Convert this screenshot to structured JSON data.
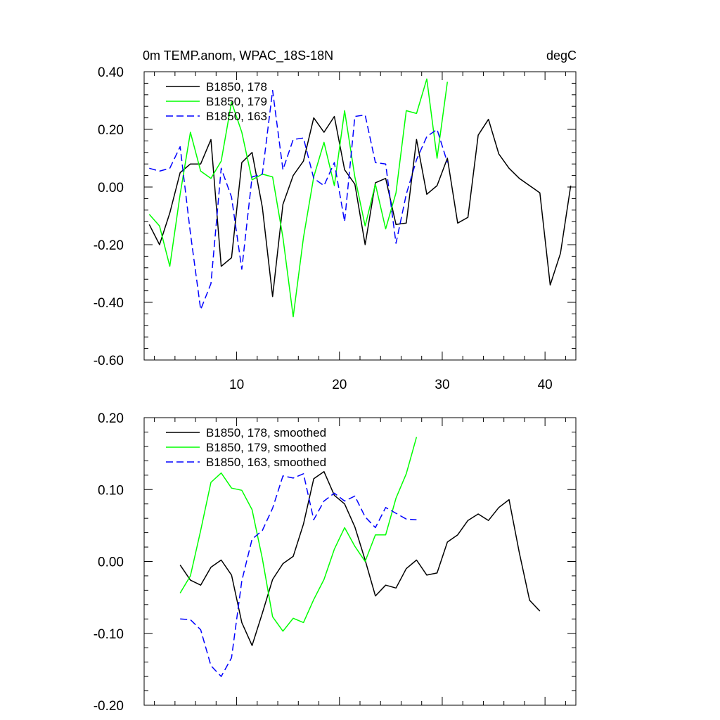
{
  "chart_data": [
    {
      "type": "line",
      "title": "0m TEMP.anom, WPAC_18S-18N",
      "subtitle_right": "degC",
      "xlabel": "",
      "ylabel": "",
      "xlim": [
        1,
        43
      ],
      "ylim": [
        -0.6,
        0.4
      ],
      "yticks": [
        -0.6,
        -0.4,
        -0.2,
        0.0,
        0.2,
        0.4
      ],
      "ytick_labels": [
        "-0.60",
        "-0.40",
        "-0.20",
        "0.00",
        "0.20",
        "0.40"
      ],
      "xticks": [
        10,
        20,
        30,
        40
      ],
      "xtick_labels": [
        "10",
        "20",
        "30",
        "40"
      ],
      "legend_position": "top-left",
      "series": [
        {
          "name": "B1850, 178",
          "color": "#000000",
          "dash": "solid",
          "x": [
            1.5,
            2.5,
            3.5,
            4.5,
            5.5,
            6.5,
            7.5,
            8.5,
            9.5,
            10.5,
            11.5,
            12.5,
            13.5,
            14.5,
            15.5,
            16.5,
            17.5,
            18.5,
            19.5,
            20.5,
            21.5,
            22.5,
            23.5,
            24.5,
            25.5,
            26.5,
            27.5,
            28.5,
            29.5,
            30.5,
            31.5,
            32.5,
            33.5,
            34.5,
            35.5,
            36.5,
            37.5,
            38.5,
            39.5,
            40.5,
            41.5,
            42.5
          ],
          "y": [
            -0.13,
            -0.2,
            -0.09,
            0.05,
            0.08,
            0.08,
            0.165,
            -0.275,
            -0.245,
            0.085,
            0.12,
            -0.07,
            -0.38,
            -0.06,
            0.04,
            0.09,
            0.24,
            0.19,
            0.245,
            0.06,
            0.01,
            -0.2,
            0.015,
            0.03,
            -0.13,
            -0.125,
            0.165,
            -0.025,
            0.005,
            0.1,
            -0.125,
            -0.105,
            0.18,
            0.235,
            0.115,
            0.065,
            0.03,
            0.005,
            -0.02,
            -0.34,
            -0.23,
            0.005
          ]
        },
        {
          "name": "B1850, 179",
          "color": "#00ff00",
          "dash": "solid",
          "x": [
            1.5,
            2.5,
            3.5,
            4.5,
            5.5,
            6.5,
            7.5,
            8.5,
            9.5,
            10.5,
            11.5,
            12.5,
            13.5,
            14.5,
            15.5,
            16.5,
            17.5,
            18.5,
            19.5,
            20.5,
            21.5,
            22.5,
            23.5,
            24.5,
            25.5,
            26.5,
            27.5,
            28.5,
            29.5,
            30.5
          ],
          "y": [
            -0.095,
            -0.135,
            -0.275,
            -0.025,
            0.19,
            0.055,
            0.03,
            0.09,
            0.295,
            0.19,
            0.025,
            0.045,
            0.035,
            -0.175,
            -0.45,
            -0.175,
            0.035,
            0.155,
            0.005,
            0.265,
            0.035,
            -0.135,
            0.01,
            -0.145,
            -0.02,
            0.265,
            0.255,
            0.375,
            0.1,
            0.365
          ]
        },
        {
          "name": "B1850, 163",
          "color": "#0000ff",
          "dash": "dashed",
          "x": [
            1.5,
            2.5,
            3.5,
            4.5,
            5.5,
            6.5,
            7.5,
            8.5,
            9.5,
            10.5,
            11.5,
            12.5,
            13.5,
            14.5,
            15.5,
            16.5,
            17.5,
            18.5,
            19.5,
            20.5,
            21.5,
            22.5,
            23.5,
            24.5,
            25.5,
            26.5,
            27.5,
            28.5,
            29.5,
            30.5
          ],
          "y": [
            0.065,
            0.055,
            0.065,
            0.14,
            -0.16,
            -0.425,
            -0.335,
            0.065,
            -0.035,
            -0.285,
            0.035,
            0.045,
            0.335,
            0.06,
            0.165,
            0.17,
            0.03,
            0.005,
            0.085,
            -0.12,
            0.245,
            0.25,
            0.085,
            0.08,
            -0.195,
            -0.025,
            0.095,
            0.175,
            0.2,
            0.085
          ]
        }
      ]
    },
    {
      "type": "line",
      "title": "",
      "xlabel": "",
      "ylabel": "",
      "xlim": [
        1,
        43
      ],
      "ylim": [
        -0.2,
        0.2
      ],
      "yticks": [
        -0.2,
        -0.1,
        0.0,
        0.1,
        0.2
      ],
      "ytick_labels": [
        "-0.20",
        "-0.10",
        "0.00",
        "0.10",
        "0.20"
      ],
      "xticks": [
        10,
        20,
        30,
        40
      ],
      "xtick_labels": [
        "",
        "",
        "",
        ""
      ],
      "legend_position": "top-left",
      "series": [
        {
          "name": "B1850, 178, smoothed",
          "color": "#000000",
          "dash": "solid",
          "x": [
            4.5,
            5.5,
            6.5,
            7.5,
            8.5,
            9.5,
            10.5,
            11.5,
            12.5,
            13.5,
            14.5,
            15.5,
            16.5,
            17.5,
            18.5,
            19.5,
            20.5,
            21.5,
            22.5,
            23.5,
            24.5,
            25.5,
            26.5,
            27.5,
            28.5,
            29.5,
            30.5,
            31.5,
            32.5,
            33.5,
            34.5,
            35.5,
            36.5,
            37.5,
            38.5,
            39.5
          ],
          "y": [
            -0.005,
            -0.026,
            -0.033,
            -0.008,
            0.002,
            -0.019,
            -0.085,
            -0.117,
            -0.072,
            -0.025,
            -0.003,
            0.007,
            0.052,
            0.115,
            0.125,
            0.092,
            0.08,
            0.048,
            0.002,
            -0.048,
            -0.033,
            -0.037,
            -0.01,
            0.002,
            -0.019,
            -0.016,
            0.027,
            0.037,
            0.057,
            0.066,
            0.057,
            0.075,
            0.086,
            0.012,
            -0.054,
            -0.069
          ]
        },
        {
          "name": "B1850, 179, smoothed",
          "color": "#00ff00",
          "dash": "solid",
          "x": [
            4.5,
            5.5,
            6.5,
            7.5,
            8.5,
            9.5,
            10.5,
            11.5,
            12.5,
            13.5,
            14.5,
            15.5,
            16.5,
            17.5,
            18.5,
            19.5,
            20.5,
            21.5,
            22.5,
            23.5,
            24.5,
            25.5,
            26.5,
            27.5
          ],
          "y": [
            -0.044,
            -0.02,
            0.043,
            0.11,
            0.123,
            0.102,
            0.099,
            0.072,
            0.004,
            -0.077,
            -0.097,
            -0.079,
            -0.085,
            -0.053,
            -0.025,
            0.017,
            0.047,
            0.021,
            0.0,
            0.037,
            0.037,
            0.088,
            0.122,
            0.173
          ]
        },
        {
          "name": "B1850, 163, smoothed",
          "color": "#0000ff",
          "dash": "dashed",
          "x": [
            4.5,
            5.5,
            6.5,
            7.5,
            8.5,
            9.5,
            10.5,
            11.5,
            12.5,
            13.5,
            14.5,
            15.5,
            16.5,
            17.5,
            18.5,
            19.5,
            20.5,
            21.5,
            22.5,
            23.5,
            24.5,
            25.5,
            26.5,
            27.5
          ],
          "y": [
            -0.08,
            -0.081,
            -0.095,
            -0.145,
            -0.16,
            -0.134,
            -0.027,
            0.031,
            0.043,
            0.074,
            0.119,
            0.116,
            0.122,
            0.058,
            0.084,
            0.095,
            0.084,
            0.091,
            0.062,
            0.047,
            0.075,
            0.067,
            0.059,
            0.058
          ]
        }
      ]
    }
  ]
}
